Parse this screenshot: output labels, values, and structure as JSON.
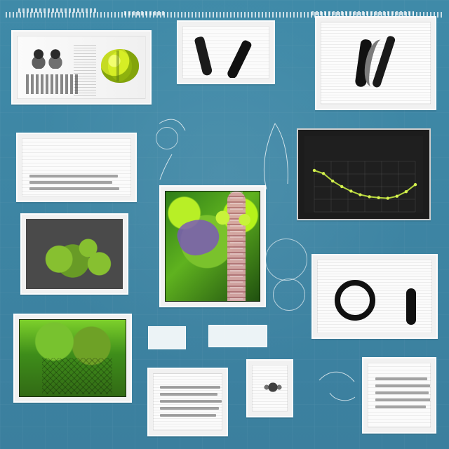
{
  "page": {
    "background": "#3f86a4"
  },
  "panels": {
    "top_left": {
      "label": ""
    },
    "top_middle": {
      "label": ""
    },
    "top_right": {
      "label": ""
    },
    "chart": {
      "title": "",
      "subtitle": ""
    },
    "mid_left_text": {
      "title": "",
      "subtitle": ""
    },
    "mid_left_image": {
      "label": ""
    },
    "bottom_left_image": {
      "label": ""
    },
    "right_middle": {
      "label": ""
    },
    "bottom_right": {
      "label": ""
    },
    "bottom_middle_left": {
      "label": ""
    },
    "bottom_middle_right": {
      "label": ""
    }
  },
  "chart_data": {
    "type": "line",
    "x": [
      1,
      2,
      3,
      4,
      5,
      6,
      7,
      8,
      9,
      10,
      11,
      12
    ],
    "series": [
      {
        "values": [
          8.2,
          7.6,
          6.1,
          5.0,
          4.1,
          3.4,
          3.0,
          2.8,
          2.7,
          3.1,
          4.0,
          5.4
        ]
      }
    ],
    "ylim": [
      0,
      10
    ],
    "grid": true,
    "legend": "none"
  }
}
